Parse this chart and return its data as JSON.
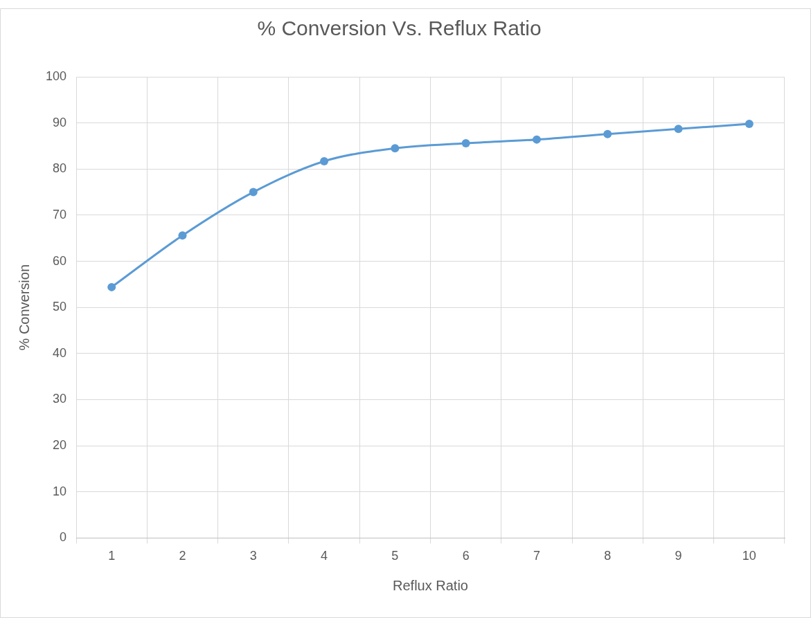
{
  "chart_data": {
    "type": "line",
    "title": "% Conversion Vs. Reflux Ratio",
    "xlabel": "Reflux Ratio",
    "ylabel": "% Conversion",
    "categories": [
      "1",
      "2",
      "3",
      "4",
      "5",
      "6",
      "7",
      "8",
      "9",
      "10"
    ],
    "series": [
      {
        "color": "#5b9bd5",
        "values": [
          54.4,
          65.6,
          75.0,
          81.7,
          84.5,
          85.6,
          86.4,
          87.6,
          88.7,
          89.8
        ]
      }
    ],
    "ylim": [
      0,
      100
    ],
    "yticks": [
      0,
      10,
      20,
      30,
      40,
      50,
      60,
      70,
      80,
      90,
      100
    ],
    "grid": true,
    "marker": "circle",
    "line_style": "solid",
    "legend": false
  }
}
